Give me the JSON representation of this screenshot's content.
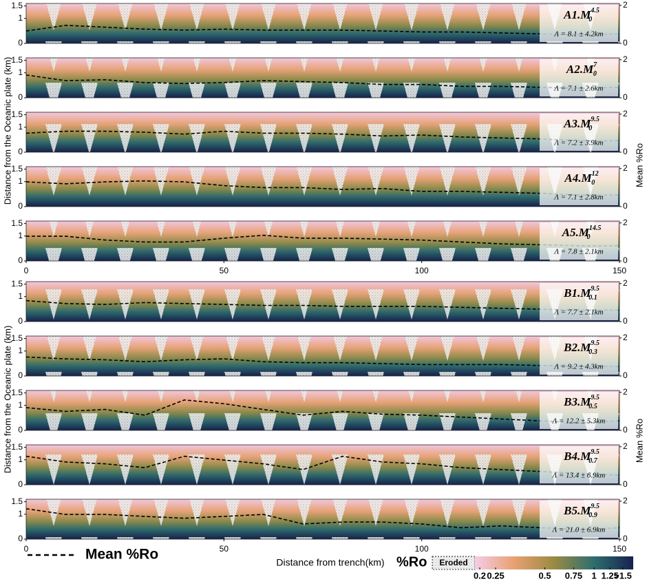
{
  "figure": {
    "ylabel": "Distance from the Oceanic plate (km)",
    "y2label": "Mean %Ro",
    "xlabel": "Distance from trench(km)",
    "legend": "Mean %Ro",
    "colorbar": {
      "label": "%Ro",
      "eroded": "Eroded",
      "clim": [
        0.2,
        1.5
      ],
      "scale": "log",
      "ticks": [
        0.2,
        0.25,
        0.5,
        0.75,
        1,
        1.25,
        {
          "value": 1.5,
          "label": ">1.5"
        }
      ]
    }
  },
  "chart_data": [
    {
      "type": "line",
      "label": "A1.M",
      "label_sub": "0",
      "label_sup": "4.5",
      "annotation": "Λ = 8.1 ± 4.2km",
      "x": [
        0,
        10,
        20,
        30,
        40,
        50,
        60,
        70,
        80,
        90,
        100,
        110,
        120,
        130,
        140,
        150
      ],
      "xlim": [
        0,
        150
      ],
      "ylim": [
        0,
        1.6
      ],
      "yticks": [
        0,
        1,
        1.5
      ],
      "y2lim": [
        0,
        2.1
      ],
      "y2ticks": [
        0,
        2
      ],
      "series": [
        {
          "axis": "y2",
          "color": "#000000",
          "values": [
            0.65,
            0.95,
            0.85,
            0.75,
            0.7,
            0.75,
            0.7,
            0.7,
            0.7,
            0.65,
            0.6,
            0.6,
            0.55,
            0.5,
            0.45,
            0.5
          ]
        }
      ]
    },
    {
      "type": "line",
      "label": "A2.M",
      "label_sub": "0",
      "label_sup": "7",
      "annotation": "Λ = 7.1 ± 2.6km",
      "x": [
        0,
        10,
        20,
        30,
        40,
        50,
        60,
        70,
        80,
        90,
        100,
        110,
        120,
        130,
        140,
        150
      ],
      "xlim": [
        0,
        150
      ],
      "ylim": [
        0,
        1.6
      ],
      "yticks": [
        0,
        1,
        1.5
      ],
      "y2lim": [
        0,
        2.1
      ],
      "y2ticks": [
        0,
        2
      ],
      "series": [
        {
          "axis": "y2",
          "color": "#000000",
          "values": [
            1.2,
            0.9,
            0.95,
            0.8,
            0.75,
            0.8,
            0.9,
            0.85,
            0.8,
            0.7,
            0.7,
            0.6,
            0.6,
            0.55,
            0.5,
            0.55
          ]
        }
      ]
    },
    {
      "type": "line",
      "label": "A3.M",
      "label_sub": "0",
      "label_sup": "9.5",
      "annotation": "Λ = 7.2 ± 3.9km",
      "x": [
        0,
        10,
        20,
        30,
        40,
        50,
        60,
        70,
        80,
        90,
        100,
        110,
        120,
        130,
        140,
        150
      ],
      "xlim": [
        0,
        150
      ],
      "ylim": [
        0,
        1.6
      ],
      "yticks": [
        0,
        1,
        1.5
      ],
      "y2lim": [
        0,
        2.1
      ],
      "y2ticks": [
        0,
        2
      ],
      "series": [
        {
          "axis": "y2",
          "color": "#000000",
          "values": [
            1.0,
            1.1,
            1.1,
            1.05,
            0.95,
            1.1,
            1.0,
            1.0,
            0.95,
            0.85,
            0.9,
            0.8,
            0.75,
            0.7,
            0.6,
            0.6
          ]
        }
      ]
    },
    {
      "type": "line",
      "label": "A4.M",
      "label_sub": "0",
      "label_sup": "12",
      "annotation": "Λ = 7.1 ± 2.8km",
      "x": [
        0,
        10,
        20,
        30,
        40,
        50,
        60,
        70,
        80,
        90,
        100,
        110,
        120,
        130,
        140,
        150
      ],
      "xlim": [
        0,
        150
      ],
      "ylim": [
        0,
        1.6
      ],
      "yticks": [
        0,
        1,
        1.5
      ],
      "y2lim": [
        0,
        2.1
      ],
      "y2ticks": [
        0,
        2
      ],
      "series": [
        {
          "axis": "y2",
          "color": "#000000",
          "values": [
            1.3,
            1.2,
            1.3,
            1.35,
            1.3,
            1.1,
            1.0,
            1.0,
            0.9,
            0.95,
            0.8,
            0.8,
            0.75,
            0.7,
            0.6,
            0.6
          ]
        }
      ]
    },
    {
      "type": "line",
      "label": "A5.M",
      "label_sub": "0",
      "label_sup": "14.5",
      "annotation": "Λ = 7.8 ± 2.1km",
      "x": [
        0,
        10,
        20,
        30,
        40,
        50,
        60,
        70,
        80,
        90,
        100,
        110,
        120,
        130,
        140,
        150
      ],
      "xlim": [
        0,
        150
      ],
      "xticks": [
        0,
        50,
        100,
        150
      ],
      "ylim": [
        0,
        1.6
      ],
      "yticks": [
        0,
        1,
        1.5
      ],
      "y2lim": [
        0,
        2.1
      ],
      "y2ticks": [
        0,
        2
      ],
      "series": [
        {
          "axis": "y2",
          "color": "#000000",
          "values": [
            1.3,
            1.3,
            1.1,
            1.0,
            1.0,
            1.2,
            1.35,
            1.2,
            1.2,
            1.15,
            1.1,
            1.0,
            0.9,
            0.85,
            0.8,
            0.8
          ]
        }
      ]
    },
    {
      "type": "line",
      "label": "B1.M",
      "label_sub": "0.1",
      "label_sup": "9.5",
      "annotation": "Λ = 7.7 ± 2.1km",
      "x": [
        0,
        10,
        20,
        30,
        40,
        50,
        60,
        70,
        80,
        90,
        100,
        110,
        120,
        130,
        140,
        150
      ],
      "xlim": [
        0,
        150
      ],
      "ylim": [
        0,
        1.6
      ],
      "yticks": [
        0,
        1,
        1.5
      ],
      "y2lim": [
        0,
        2.1
      ],
      "y2ticks": [
        0,
        2
      ],
      "series": [
        {
          "axis": "y2",
          "color": "#000000",
          "values": [
            1.1,
            0.95,
            0.9,
            1.0,
            0.95,
            0.9,
            0.85,
            0.85,
            0.8,
            0.8,
            0.8,
            0.75,
            0.7,
            0.65,
            0.6,
            0.6
          ]
        }
      ]
    },
    {
      "type": "line",
      "label": "B2.M",
      "label_sub": "0.3",
      "label_sup": "9.5",
      "annotation": "Λ = 9.2 ± 4.3km",
      "x": [
        0,
        10,
        20,
        30,
        40,
        50,
        60,
        70,
        80,
        90,
        100,
        110,
        120,
        130,
        140,
        150
      ],
      "xlim": [
        0,
        150
      ],
      "ylim": [
        0,
        1.6
      ],
      "yticks": [
        0,
        1,
        1.5
      ],
      "y2lim": [
        0,
        2.1
      ],
      "y2ticks": [
        0,
        2
      ],
      "series": [
        {
          "axis": "y2",
          "color": "#000000",
          "values": [
            1.0,
            0.9,
            0.85,
            0.75,
            0.85,
            0.9,
            0.75,
            0.7,
            0.7,
            0.65,
            0.6,
            0.6,
            0.6,
            0.55,
            0.5,
            0.5
          ]
        }
      ]
    },
    {
      "type": "line",
      "label": "B3.M",
      "label_sub": "0.5",
      "label_sup": "9.5",
      "annotation": "Λ = 12.2 ± 5.3km",
      "x": [
        0,
        10,
        20,
        30,
        40,
        50,
        60,
        70,
        80,
        90,
        100,
        110,
        120,
        130,
        140,
        150
      ],
      "xlim": [
        0,
        150
      ],
      "ylim": [
        0,
        1.6
      ],
      "yticks": [
        0,
        1,
        1.5
      ],
      "y2lim": [
        0,
        2.1
      ],
      "y2ticks": [
        0,
        2
      ],
      "series": [
        {
          "axis": "y2",
          "color": "#000000",
          "values": [
            1.2,
            1.0,
            1.1,
            0.8,
            1.6,
            1.4,
            1.1,
            0.8,
            1.0,
            0.85,
            0.8,
            0.7,
            0.6,
            0.5,
            0.4,
            0.5
          ]
        }
      ]
    },
    {
      "type": "line",
      "label": "B4.M",
      "label_sub": "0.7",
      "label_sup": "9.5",
      "annotation": "Λ = 13.4 ± 6.9km",
      "x": [
        0,
        10,
        20,
        30,
        40,
        50,
        60,
        70,
        80,
        90,
        100,
        110,
        120,
        130,
        140,
        150
      ],
      "xlim": [
        0,
        150
      ],
      "ylim": [
        0,
        1.6
      ],
      "yticks": [
        0,
        1,
        1.5
      ],
      "y2lim": [
        0,
        2.1
      ],
      "y2ticks": [
        0,
        2
      ],
      "series": [
        {
          "axis": "y2",
          "color": "#000000",
          "values": [
            1.5,
            1.2,
            1.1,
            0.9,
            1.5,
            1.3,
            1.1,
            0.8,
            1.5,
            1.2,
            1.1,
            0.9,
            0.8,
            0.7,
            0.6,
            0.5
          ]
        }
      ]
    },
    {
      "type": "line",
      "label": "B5.M",
      "label_sub": "0.9",
      "label_sup": "9.5",
      "annotation": "Λ = 21.0 ± 6.9km",
      "x": [
        0,
        10,
        20,
        30,
        40,
        50,
        60,
        70,
        80,
        90,
        100,
        110,
        120,
        130,
        140,
        150
      ],
      "xlim": [
        0,
        150
      ],
      "xticks": [
        0,
        50,
        100,
        150
      ],
      "ylim": [
        0,
        1.6
      ],
      "yticks": [
        0,
        1,
        1.5
      ],
      "y2lim": [
        0,
        2.1
      ],
      "y2ticks": [
        0,
        2
      ],
      "series": [
        {
          "axis": "y2",
          "color": "#000000",
          "values": [
            1.6,
            1.3,
            1.3,
            1.2,
            1.1,
            1.2,
            1.3,
            0.8,
            0.9,
            0.9,
            0.8,
            0.6,
            0.7,
            0.6,
            0.5,
            0.6
          ]
        }
      ]
    }
  ]
}
